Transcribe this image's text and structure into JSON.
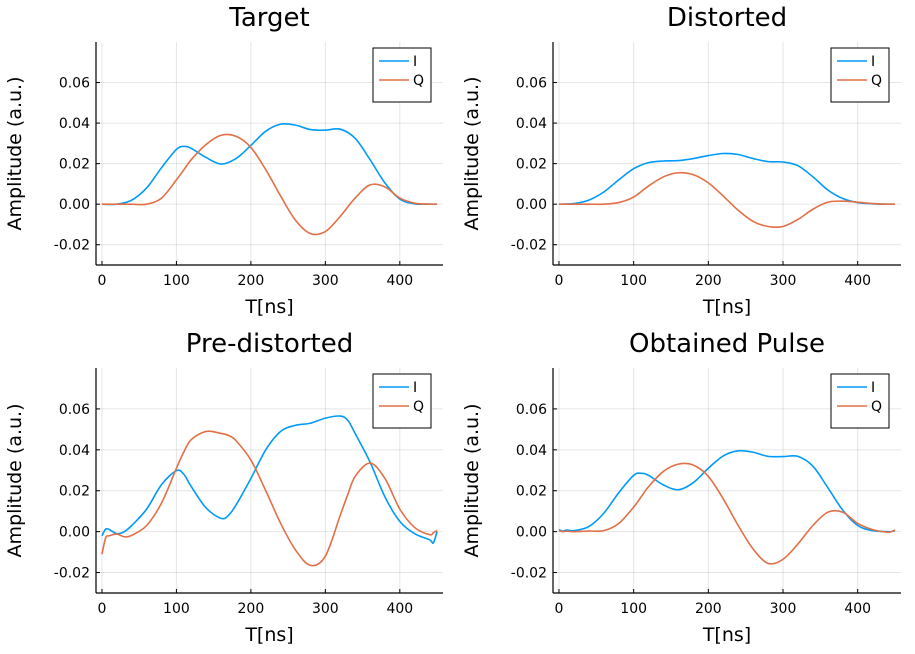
{
  "chart_data": [
    {
      "type": "line",
      "title": "Target",
      "xlabel": "T[ns]",
      "ylabel": "Amplitude (a.u.)",
      "xlim": [
        -8,
        458
      ],
      "ylim": [
        -0.03,
        0.08
      ],
      "xticks": [
        0,
        100,
        200,
        300,
        400
      ],
      "xtick_labels": [
        "0",
        "100",
        "200",
        "300",
        "400"
      ],
      "yticks": [
        -0.02,
        0.0,
        0.02,
        0.04,
        0.06
      ],
      "ytick_labels": [
        "-0.02",
        "0.00",
        "0.02",
        "0.04",
        "0.06"
      ],
      "grid": true,
      "legend": "top-right",
      "x": [
        0,
        20,
        40,
        60,
        80,
        100,
        110,
        120,
        140,
        160,
        180,
        200,
        220,
        240,
        260,
        280,
        300,
        320,
        340,
        360,
        380,
        400,
        420,
        440,
        450
      ],
      "series": [
        {
          "name": "I",
          "color": "#009AFA",
          "values": [
            0.0,
            0.0,
            0.002,
            0.008,
            0.018,
            0.027,
            0.0285,
            0.0275,
            0.023,
            0.0198,
            0.0225,
            0.029,
            0.036,
            0.0395,
            0.039,
            0.0368,
            0.0365,
            0.037,
            0.0325,
            0.022,
            0.0105,
            0.0025,
            0.0002,
            0.0,
            0.0
          ]
        },
        {
          "name": "Q",
          "color": "#E26F46",
          "values": [
            0.0,
            0.0,
            0.0,
            0.0,
            0.003,
            0.012,
            0.017,
            0.022,
            0.0295,
            0.034,
            0.0335,
            0.028,
            0.017,
            0.004,
            -0.008,
            -0.0145,
            -0.0135,
            -0.006,
            0.003,
            0.0095,
            0.0085,
            0.003,
            0.0005,
            0.0,
            0.0
          ]
        }
      ]
    },
    {
      "type": "line",
      "title": "Distorted",
      "xlabel": "T[ns]",
      "ylabel": "Amplitude (a.u.)",
      "xlim": [
        -8,
        458
      ],
      "ylim": [
        -0.03,
        0.08
      ],
      "xticks": [
        0,
        100,
        200,
        300,
        400
      ],
      "xtick_labels": [
        "0",
        "100",
        "200",
        "300",
        "400"
      ],
      "yticks": [
        -0.02,
        0.0,
        0.02,
        0.04,
        0.06
      ],
      "ytick_labels": [
        "-0.02",
        "0.00",
        "0.02",
        "0.04",
        "0.06"
      ],
      "grid": true,
      "legend": "top-right",
      "x": [
        0,
        20,
        40,
        60,
        80,
        100,
        120,
        140,
        160,
        180,
        200,
        220,
        240,
        260,
        280,
        300,
        320,
        340,
        360,
        380,
        400,
        420,
        440,
        450
      ],
      "series": [
        {
          "name": "I",
          "color": "#009AFA",
          "values": [
            0.0,
            0.0003,
            0.002,
            0.006,
            0.012,
            0.0175,
            0.0205,
            0.0213,
            0.0215,
            0.0225,
            0.024,
            0.025,
            0.0245,
            0.0225,
            0.021,
            0.0208,
            0.019,
            0.0135,
            0.007,
            0.0028,
            0.0008,
            0.0002,
            0.0,
            0.0
          ]
        },
        {
          "name": "Q",
          "color": "#E26F46",
          "values": [
            0.0,
            0.0,
            0.0,
            0.0,
            0.0008,
            0.0035,
            0.009,
            0.0135,
            0.0155,
            0.0145,
            0.0105,
            0.004,
            -0.003,
            -0.0085,
            -0.011,
            -0.011,
            -0.0075,
            -0.0025,
            0.001,
            0.0015,
            0.001,
            0.0003,
            0.0,
            0.0
          ]
        }
      ]
    },
    {
      "type": "line",
      "title": "Pre-distorted",
      "xlabel": "T[ns]",
      "ylabel": "Amplitude (a.u.)",
      "xlim": [
        -8,
        458
      ],
      "ylim": [
        -0.03,
        0.08
      ],
      "xticks": [
        0,
        100,
        200,
        300,
        400
      ],
      "xtick_labels": [
        "0",
        "100",
        "200",
        "300",
        "400"
      ],
      "yticks": [
        -0.02,
        0.0,
        0.02,
        0.04,
        0.06
      ],
      "ytick_labels": [
        "-0.02",
        "0.00",
        "0.02",
        "0.04",
        "0.06"
      ],
      "grid": true,
      "legend": "top-right",
      "x": [
        0,
        5,
        10,
        20,
        30,
        40,
        60,
        80,
        100,
        110,
        120,
        140,
        160,
        170,
        180,
        200,
        220,
        240,
        260,
        280,
        300,
        320,
        330,
        340,
        360,
        380,
        400,
        420,
        440,
        445,
        450
      ],
      "series": [
        {
          "name": "I",
          "color": "#009AFA",
          "values": [
            -0.002,
            0.0012,
            0.001,
            -0.001,
            0.0,
            0.003,
            0.011,
            0.023,
            0.0298,
            0.028,
            0.022,
            0.0115,
            0.0065,
            0.008,
            0.013,
            0.026,
            0.04,
            0.049,
            0.052,
            0.053,
            0.0555,
            0.0565,
            0.0545,
            0.048,
            0.034,
            0.017,
            0.005,
            -0.001,
            -0.004,
            -0.0055,
            0.0
          ]
        },
        {
          "name": "Q",
          "color": "#E26F46",
          "values": [
            -0.011,
            -0.003,
            -0.002,
            -0.0012,
            -0.0025,
            -0.0018,
            0.003,
            0.014,
            0.031,
            0.039,
            0.045,
            0.049,
            0.048,
            0.047,
            0.0445,
            0.035,
            0.02,
            0.004,
            -0.009,
            -0.0165,
            -0.012,
            0.008,
            0.018,
            0.027,
            0.0335,
            0.026,
            0.011,
            0.002,
            -0.0015,
            -0.0005,
            0.0005
          ]
        }
      ]
    },
    {
      "type": "line",
      "title": "Obtained Pulse",
      "xlabel": "T[ns]",
      "ylabel": "Amplitude (a.u.)",
      "xlim": [
        -8,
        458
      ],
      "ylim": [
        -0.03,
        0.08
      ],
      "xticks": [
        0,
        100,
        200,
        300,
        400
      ],
      "xtick_labels": [
        "0",
        "100",
        "200",
        "300",
        "400"
      ],
      "yticks": [
        -0.02,
        0.0,
        0.02,
        0.04,
        0.06
      ],
      "ytick_labels": [
        "-0.02",
        "0.00",
        "0.02",
        "0.04",
        "0.06"
      ],
      "grid": true,
      "legend": "top-right",
      "x": [
        0,
        5,
        10,
        20,
        40,
        60,
        80,
        100,
        110,
        120,
        140,
        160,
        180,
        200,
        220,
        240,
        260,
        280,
        300,
        320,
        340,
        360,
        380,
        400,
        420,
        440,
        445,
        450
      ],
      "series": [
        {
          "name": "I",
          "color": "#009AFA",
          "values": [
            0.001,
            0.0002,
            0.0008,
            0.0005,
            0.0025,
            0.009,
            0.019,
            0.0275,
            0.0285,
            0.0275,
            0.0228,
            0.0205,
            0.024,
            0.031,
            0.037,
            0.0395,
            0.0388,
            0.0368,
            0.0367,
            0.0368,
            0.032,
            0.0215,
            0.0105,
            0.003,
            0.0005,
            0.0,
            0.0,
            0.0005
          ]
        },
        {
          "name": "Q",
          "color": "#E26F46",
          "values": [
            0.0005,
            0.0,
            0.0002,
            0.0,
            0.0003,
            0.0005,
            0.004,
            0.012,
            0.017,
            0.022,
            0.0295,
            0.033,
            0.0325,
            0.027,
            0.016,
            0.003,
            -0.0085,
            -0.0155,
            -0.0135,
            -0.006,
            0.003,
            0.0095,
            0.0095,
            0.004,
            0.001,
            -0.0003,
            0.0,
            0.0008
          ]
        }
      ]
    }
  ]
}
